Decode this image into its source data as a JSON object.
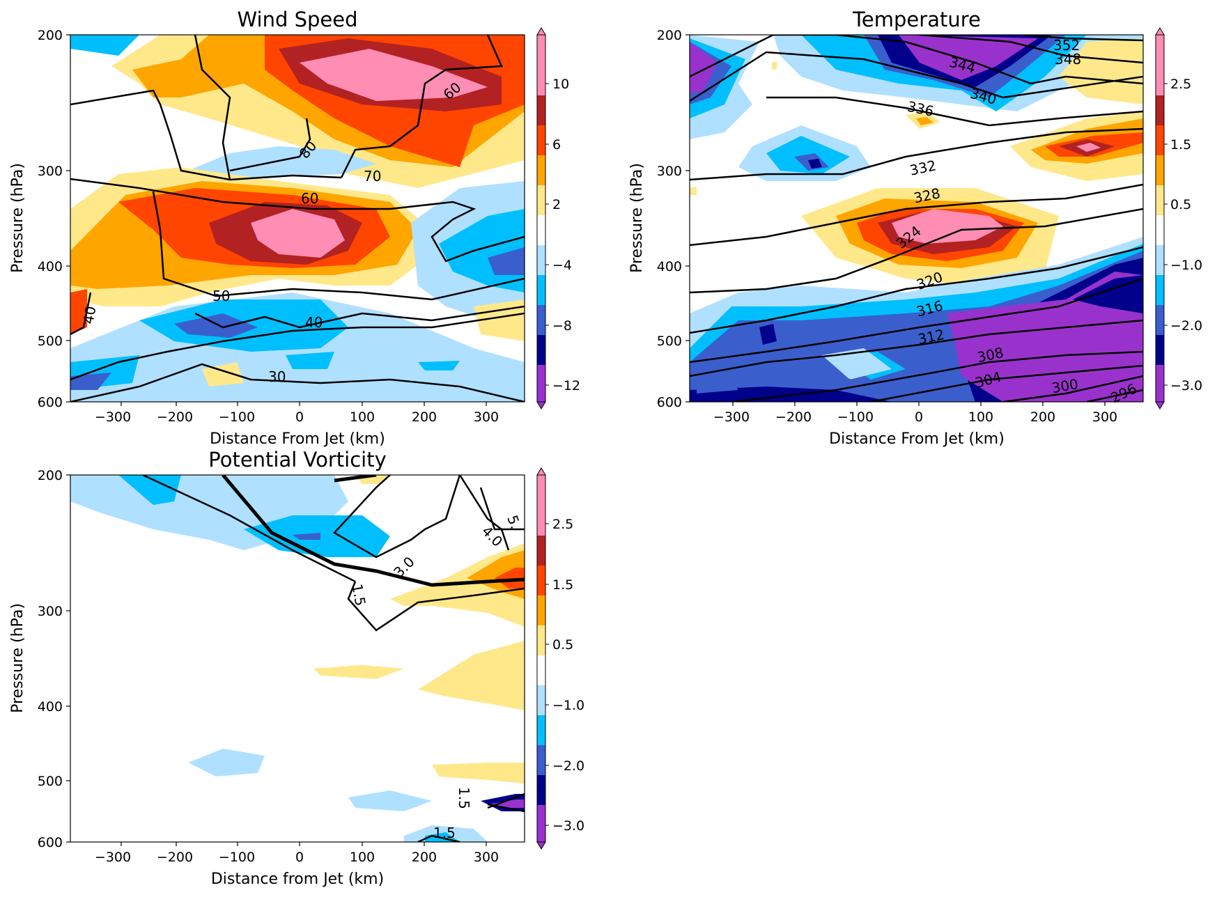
{
  "palette": {
    "levels_wind": [
      "-12",
      "-8",
      "-4",
      "2",
      "6",
      "10"
    ],
    "colors": [
      "#9932cc",
      "#00008b",
      "#3a5fcd",
      "#00bfff",
      "#b0e0ff",
      "#ffffff",
      "#ffe88a",
      "#ffa500",
      "#ff4500",
      "#b22222",
      "#ff8db4"
    ]
  },
  "chart_data": [
    {
      "type": "heatmap",
      "title": "Wind Speed",
      "xlabel": "Distance From Jet (km)",
      "ylabel": "Pressure (hPa)",
      "xlim": [
        -375,
        360
      ],
      "ylim": [
        600,
        200
      ],
      "xticks": [
        "−300",
        "−200",
        "−100",
        "0",
        "100",
        "200",
        "300"
      ],
      "xtick_values": [
        -300,
        -200,
        -100,
        0,
        100,
        200,
        300
      ],
      "yticks": [
        "200",
        "300",
        "400",
        "500",
        "600"
      ],
      "ytick_values": [
        200,
        300,
        400,
        500,
        600
      ],
      "colorbar_ticks": [
        "−12",
        "−8",
        "−4",
        "2",
        "6",
        "10"
      ],
      "contour_labels": [
        "30",
        "40",
        "40",
        "50",
        "60",
        "60",
        "70",
        "80"
      ],
      "anomaly_blobs": [
        {
          "x": 90,
          "p": 240,
          "value": 12
        },
        {
          "x": 10,
          "p": 370,
          "value": 12
        },
        {
          "x": -110,
          "p": 455,
          "value": -5
        },
        {
          "x": 340,
          "p": 390,
          "value": -7
        },
        {
          "x": -20,
          "p": 290,
          "value": -3
        },
        {
          "x": -320,
          "p": 545,
          "value": -4
        }
      ]
    },
    {
      "type": "heatmap",
      "title": "Temperature",
      "xlabel": "Distance From Jet (km)",
      "ylabel": "Pressure (hPa)",
      "xlim": [
        -375,
        360
      ],
      "ylim": [
        600,
        200
      ],
      "xticks": [
        "−300",
        "−200",
        "−100",
        "0",
        "100",
        "200",
        "300"
      ],
      "xtick_values": [
        -300,
        -200,
        -100,
        0,
        100,
        200,
        300
      ],
      "yticks": [
        "200",
        "300",
        "400",
        "500",
        "600"
      ],
      "ytick_values": [
        200,
        300,
        400,
        500,
        600
      ],
      "colorbar_ticks": [
        "−3.0",
        "−2.0",
        "−1.0",
        "0.5",
        "1.5",
        "2.5"
      ],
      "contour_labels": [
        "352",
        "348",
        "344",
        "340",
        "336",
        "332",
        "328",
        "324",
        "320",
        "316",
        "312",
        "308",
        "304",
        "300",
        "296"
      ],
      "anomaly_blobs": [
        {
          "x": 80,
          "p": 365,
          "value": 3
        },
        {
          "x": 240,
          "p": 285,
          "value": 2.5
        },
        {
          "x": 80,
          "p": 215,
          "value": -3
        },
        {
          "x": -340,
          "p": 235,
          "value": -2.8
        },
        {
          "x": -120,
          "p": 295,
          "value": -2.4
        },
        {
          "x": 270,
          "p": 470,
          "value": -3
        }
      ]
    },
    {
      "type": "heatmap",
      "title": "Potential Vorticity",
      "xlabel": "Distance from Jet (km)",
      "ylabel": "Pressure (hPa)",
      "xlim": [
        -375,
        360
      ],
      "ylim": [
        600,
        200
      ],
      "xticks": [
        "−300",
        "−200",
        "−100",
        "0",
        "100",
        "200",
        "300"
      ],
      "xtick_values": [
        -300,
        -200,
        -100,
        0,
        100,
        200,
        300
      ],
      "yticks": [
        "200",
        "300",
        "400",
        "500",
        "600"
      ],
      "ytick_values": [
        200,
        300,
        400,
        500,
        600
      ],
      "colorbar_ticks": [
        "−3.0",
        "−2.0",
        "−1.0",
        "0.5",
        "1.5",
        "2.5"
      ],
      "contour_labels": [
        "1.5",
        "3.0",
        "4.0",
        "5.",
        "1.5",
        "1.5"
      ],
      "anomaly_blobs": [
        {
          "x": -200,
          "p": 220,
          "value": -1.3
        },
        {
          "x": 80,
          "p": 260,
          "value": -1.5
        },
        {
          "x": 340,
          "p": 285,
          "value": 2
        },
        {
          "x": 300,
          "p": 375,
          "value": 0.8
        }
      ]
    }
  ]
}
